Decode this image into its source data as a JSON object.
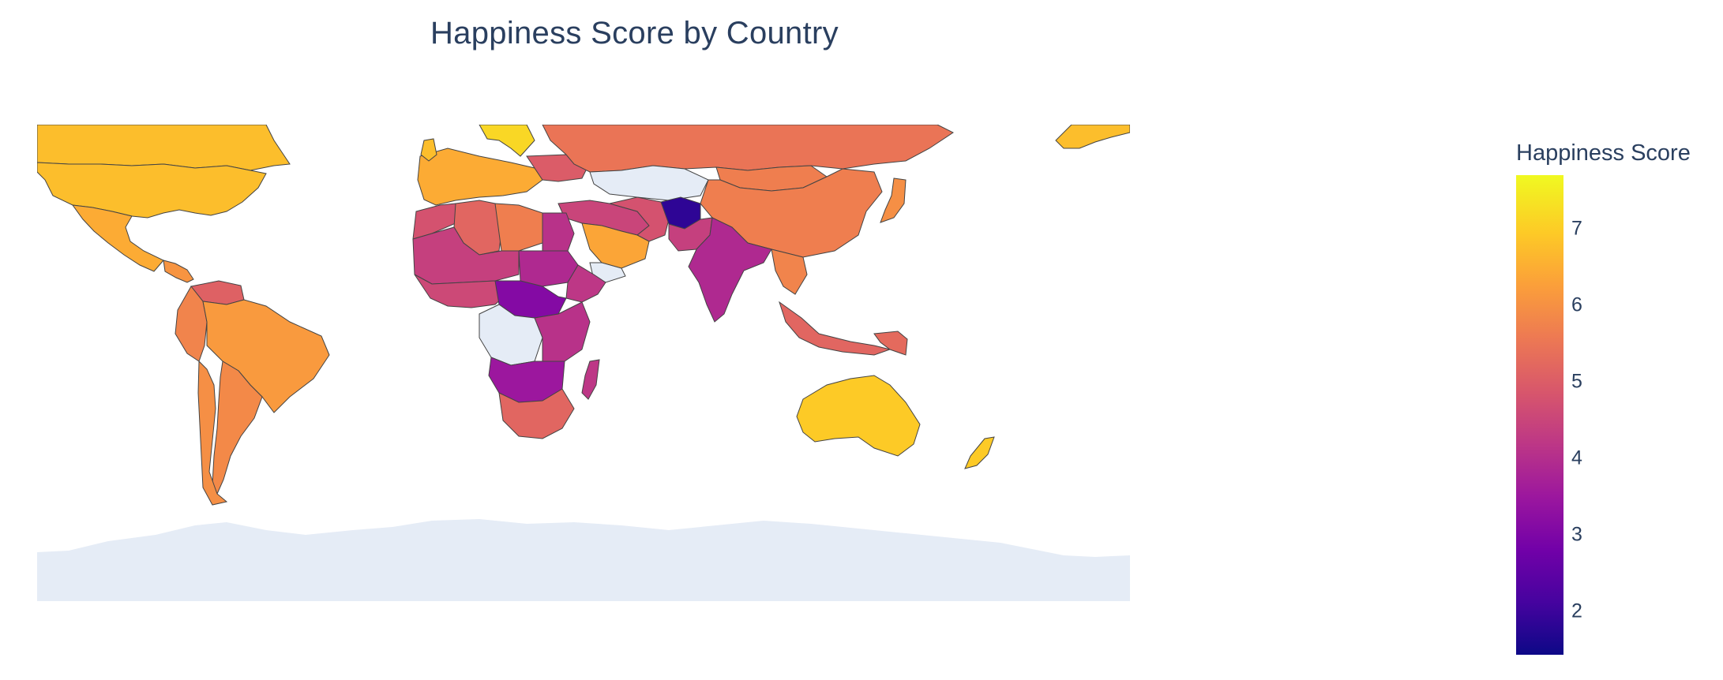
{
  "title": "Happiness Score by Country",
  "colorbar": {
    "title": "Happiness Score",
    "ticks": [
      "7",
      "6",
      "5",
      "4",
      "3",
      "2"
    ],
    "range": [
      1.5,
      7.8
    ],
    "colorscale": [
      "#0d0887",
      "#46039f",
      "#7201a8",
      "#9c179e",
      "#bd3786",
      "#d8576b",
      "#ed7953",
      "#fb9f3a",
      "#fdca26",
      "#f0f921"
    ]
  },
  "map": {
    "projection": "equirectangular",
    "ocean_color": "#ffffff",
    "land_nodata_color": "#e5ecf6",
    "border_color": "#444444"
  },
  "regions": [
    {
      "name": "Canada",
      "score": 6.9
    },
    {
      "name": "United States",
      "score": 6.9
    },
    {
      "name": "Mexico",
      "score": 6.6
    },
    {
      "name": "Brazil",
      "score": 6.3
    },
    {
      "name": "Argentina",
      "score": 6.0
    },
    {
      "name": "Venezuela",
      "score": 5.2
    },
    {
      "name": "Russia",
      "score": 5.6
    },
    {
      "name": "China",
      "score": 5.8
    },
    {
      "name": "Mongolia",
      "score": 5.8
    },
    {
      "name": "India",
      "score": 4.0
    },
    {
      "name": "Afghanistan",
      "score": 1.9
    },
    {
      "name": "Pakistan",
      "score": 4.5
    },
    {
      "name": "Iran",
      "score": 4.9
    },
    {
      "name": "Saudi Arabia",
      "score": 6.5
    },
    {
      "name": "Egypt",
      "score": 4.2
    },
    {
      "name": "Algeria",
      "score": 5.3
    },
    {
      "name": "Libya",
      "score": 5.8
    },
    {
      "name": "Sudan",
      "score": 4.0
    },
    {
      "name": "Australia",
      "score": 7.1
    },
    {
      "name": "New Zealand",
      "score": 7.1
    },
    {
      "name": "South Africa",
      "score": 5.3
    },
    {
      "name": "Madagascar",
      "score": 4.3
    },
    {
      "name": "Indonesia",
      "score": 5.3
    },
    {
      "name": "Japan",
      "score": 6.1
    }
  ]
}
